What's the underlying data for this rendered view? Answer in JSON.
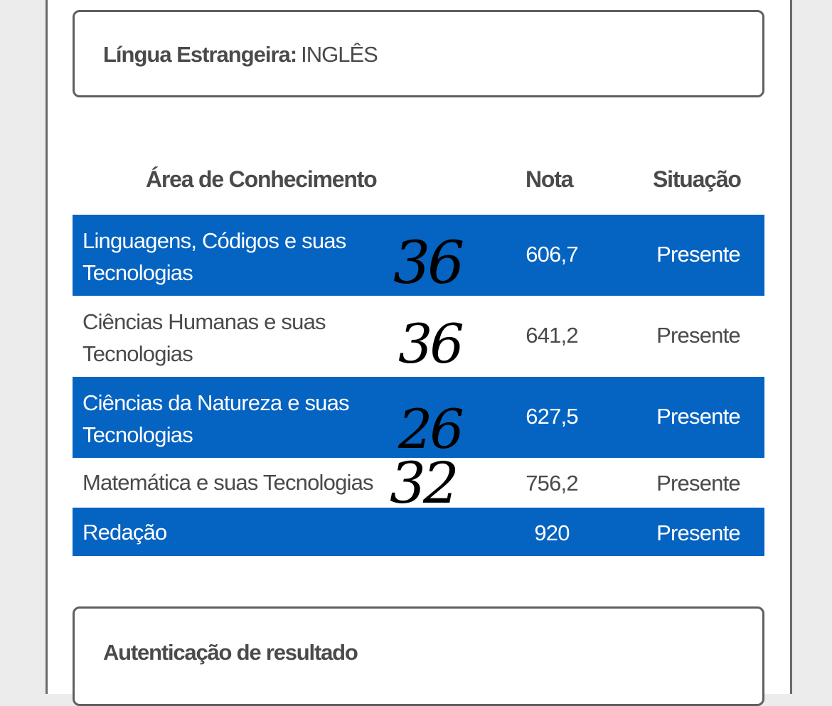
{
  "language_box": {
    "label": "Língua Estrangeira:",
    "value": "INGLÊS"
  },
  "table": {
    "headers": {
      "area": "Área de Conhecimento",
      "nota": "Nota",
      "situacao": "Situação"
    },
    "rows": [
      {
        "area_line1": "Linguagens, Códigos e suas",
        "area_line2": "Tecnologias",
        "nota": "606,7",
        "situacao": "Presente",
        "handwritten": "36"
      },
      {
        "area_line1": "Ciências Humanas e suas",
        "area_line2": "Tecnologias",
        "nota": "641,2",
        "situacao": "Presente",
        "handwritten": "36"
      },
      {
        "area_line1": "Ciências da Natureza e suas",
        "area_line2": "Tecnologias",
        "nota": "627,5",
        "situacao": "Presente",
        "handwritten": "26"
      },
      {
        "area_line1": "Matemática e suas Tecnologias",
        "nota": "756,2",
        "situacao": "Presente",
        "handwritten": "32"
      },
      {
        "area_line1": "Redação",
        "nota": "920",
        "situacao": "Presente"
      }
    ]
  },
  "auth_box": {
    "title": "Autenticação de resultado"
  },
  "colors": {
    "row_highlight": "#0563c1",
    "text": "#4a4a4a",
    "border": "#5f5f5f"
  }
}
